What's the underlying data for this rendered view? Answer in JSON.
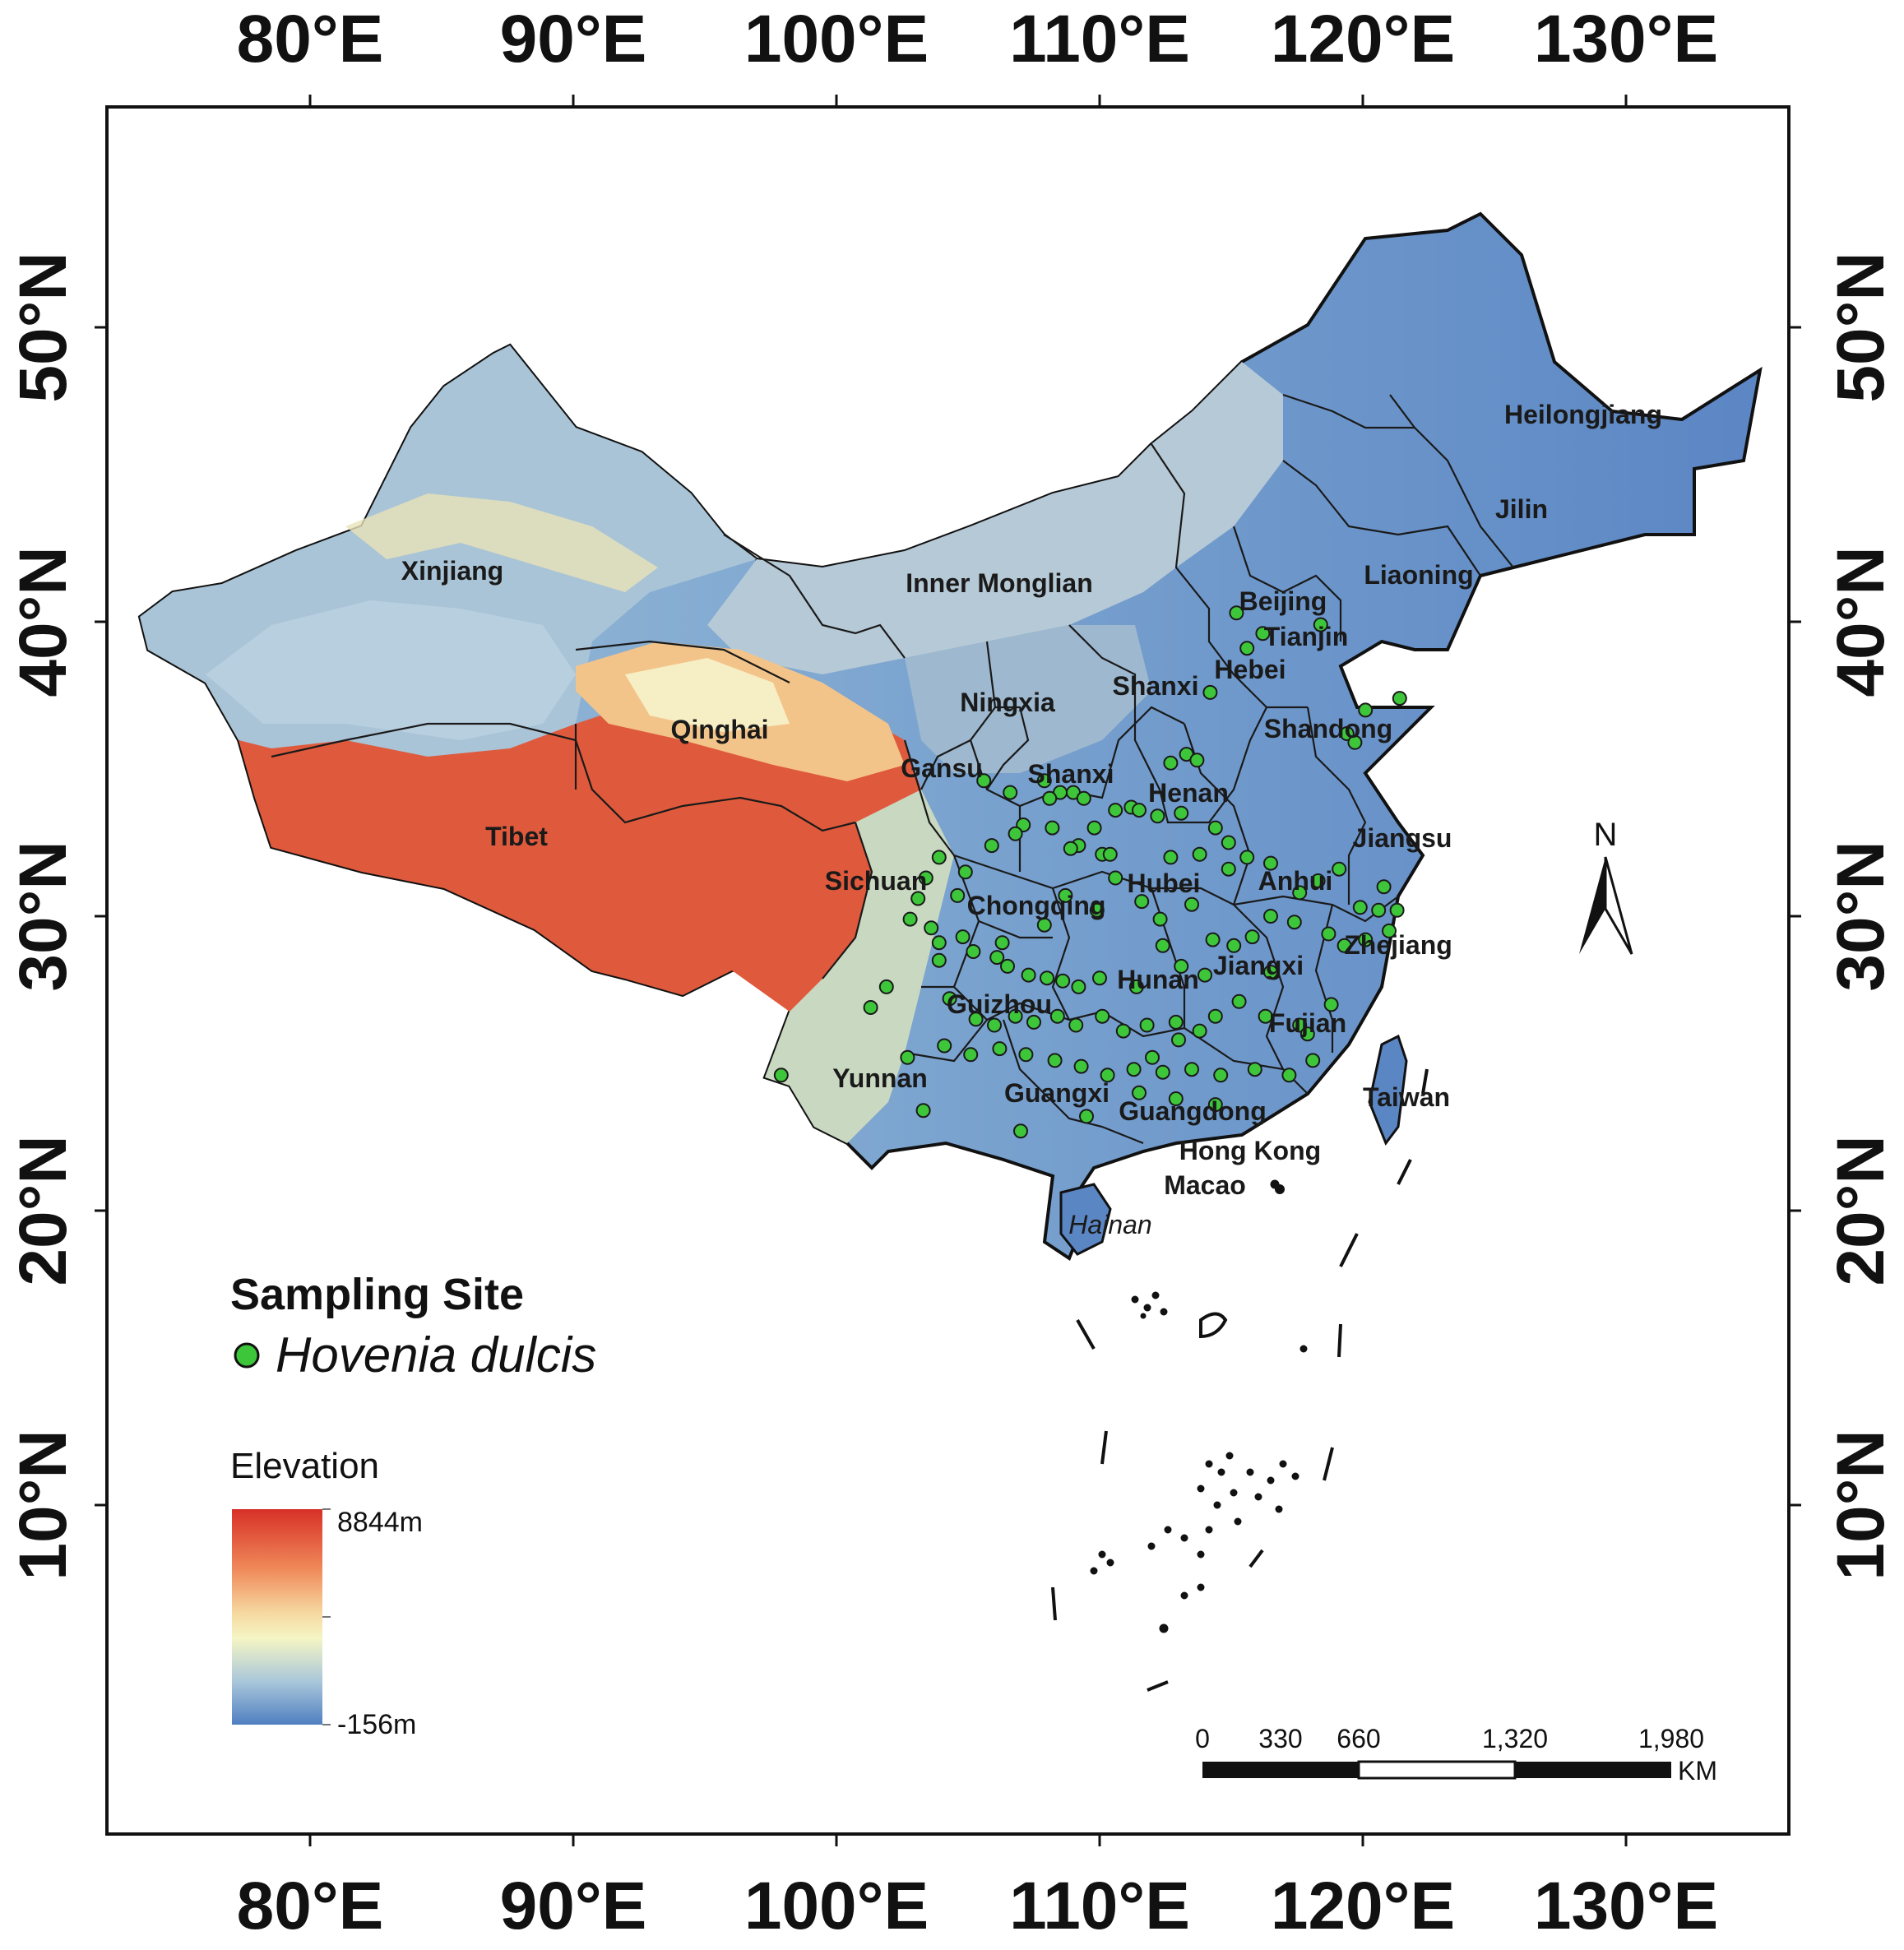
{
  "axes": {
    "top_lon_labels": [
      "80°E",
      "90°E",
      "100°E",
      "110°E",
      "120°E",
      "130°E"
    ],
    "bottom_lon_labels": [
      "80°E",
      "90°E",
      "100°E",
      "110°E",
      "120°E",
      "130°E"
    ],
    "left_lat_labels": [
      "50°N",
      "40°N",
      "30°N",
      "20°N",
      "10°N"
    ],
    "right_lat_labels": [
      "50°N",
      "40°N",
      "30°N",
      "20°N",
      "10°N"
    ]
  },
  "provinces": [
    {
      "name": "Xinjiang",
      "style": "bold"
    },
    {
      "name": "Inner Monglian",
      "style": "bold"
    },
    {
      "name": "Heilongjiang",
      "style": "bold"
    },
    {
      "name": "Jilin",
      "style": "bold"
    },
    {
      "name": "Liaoning",
      "style": "bold"
    },
    {
      "name": "Beijing",
      "style": "bold"
    },
    {
      "name": "Tianjin",
      "style": "bold"
    },
    {
      "name": "Hebei",
      "style": "bold"
    },
    {
      "name": "Shanxi",
      "style": "bold"
    },
    {
      "name": "Ningxia",
      "style": "bold"
    },
    {
      "name": "Qinghai",
      "style": "bold"
    },
    {
      "name": "Gansu",
      "style": "bold"
    },
    {
      "name": "Shanxi",
      "style": "bold"
    },
    {
      "name": "Shandong",
      "style": "bold"
    },
    {
      "name": "Henan",
      "style": "bold"
    },
    {
      "name": "Jiangsu",
      "style": "bold"
    },
    {
      "name": "Tibet",
      "style": "bold"
    },
    {
      "name": "Sichuan",
      "style": "bold"
    },
    {
      "name": "Chongqing",
      "style": "bold"
    },
    {
      "name": "Hubei",
      "style": "bold"
    },
    {
      "name": "Anhui",
      "style": "bold"
    },
    {
      "name": "Zhejiang",
      "style": "bold"
    },
    {
      "name": "Hunan",
      "style": "bold"
    },
    {
      "name": "Jiangxi",
      "style": "bold"
    },
    {
      "name": "Guizhou",
      "style": "bold"
    },
    {
      "name": "Fujian",
      "style": "bold"
    },
    {
      "name": "Yunnan",
      "style": "bold"
    },
    {
      "name": "Guangxi",
      "style": "bold"
    },
    {
      "name": "Guangdong",
      "style": "bold"
    },
    {
      "name": "Taiwan",
      "style": "bold"
    },
    {
      "name": "Hong Kong",
      "style": "bold"
    },
    {
      "name": "Macao",
      "style": "bold"
    },
    {
      "name": "Hainan",
      "style": "italic"
    }
  ],
  "legend": {
    "title": "Sampling Site",
    "species": "Hovenia dulcis",
    "marker_color": "#3ec63a",
    "elevation_title": "Elevation",
    "elevation_max": "8844m",
    "elevation_min": "-156m",
    "elevation_colors": [
      "#d73027",
      "#f08a5a",
      "#f6d8a0",
      "#f5f5c4",
      "#a9c7da",
      "#4f7fc1"
    ]
  },
  "scale_bar": {
    "ticks": [
      "0",
      "330",
      "660",
      "1,320",
      "1,980"
    ],
    "unit": "KM"
  },
  "north_arrow": {
    "label": "N"
  },
  "sampling_sites": [
    [
      118.4,
      39.9
    ],
    [
      116.2,
      39.6
    ],
    [
      115.2,
      40.3
    ],
    [
      115.6,
      39.1
    ],
    [
      114.2,
      37.6
    ],
    [
      121.4,
      37.4
    ],
    [
      120.1,
      37.0
    ],
    [
      119.4,
      36.2
    ],
    [
      119.7,
      35.9
    ],
    [
      113.3,
      35.5
    ],
    [
      112.7,
      35.2
    ],
    [
      113.7,
      35.3
    ],
    [
      105.6,
      34.6
    ],
    [
      106.6,
      34.2
    ],
    [
      107.9,
      34.6
    ],
    [
      108.5,
      34.2
    ],
    [
      108.1,
      34.0
    ],
    [
      109.0,
      34.2
    ],
    [
      109.4,
      34.0
    ],
    [
      110.6,
      33.6
    ],
    [
      111.2,
      33.7
    ],
    [
      111.5,
      33.6
    ],
    [
      112.2,
      33.4
    ],
    [
      113.1,
      33.5
    ],
    [
      107.1,
      33.1
    ],
    [
      108.2,
      33.0
    ],
    [
      109.8,
      33.0
    ],
    [
      109.2,
      32.4
    ],
    [
      108.9,
      32.3
    ],
    [
      110.1,
      32.1
    ],
    [
      106.8,
      32.8
    ],
    [
      105.9,
      32.4
    ],
    [
      103.9,
      32.0
    ],
    [
      103.4,
      31.3
    ],
    [
      103.1,
      30.6
    ],
    [
      102.8,
      29.9
    ],
    [
      103.6,
      29.6
    ],
    [
      103.9,
      29.1
    ],
    [
      104.8,
      29.3
    ],
    [
      105.2,
      28.8
    ],
    [
      106.1,
      28.6
    ],
    [
      106.5,
      28.3
    ],
    [
      107.3,
      28.0
    ],
    [
      108.0,
      27.9
    ],
    [
      108.6,
      27.8
    ],
    [
      109.2,
      27.6
    ],
    [
      110.0,
      27.9
    ],
    [
      111.4,
      27.6
    ],
    [
      104.3,
      27.2
    ],
    [
      105.3,
      26.5
    ],
    [
      106.0,
      26.3
    ],
    [
      106.8,
      26.6
    ],
    [
      107.5,
      26.4
    ],
    [
      108.4,
      26.6
    ],
    [
      109.1,
      26.3
    ],
    [
      110.1,
      26.6
    ],
    [
      110.9,
      26.1
    ],
    [
      111.8,
      26.3
    ],
    [
      112.9,
      26.4
    ],
    [
      113.8,
      26.1
    ],
    [
      104.1,
      25.6
    ],
    [
      105.1,
      25.3
    ],
    [
      106.2,
      25.5
    ],
    [
      107.2,
      25.3
    ],
    [
      108.3,
      25.1
    ],
    [
      109.3,
      24.9
    ],
    [
      110.3,
      24.6
    ],
    [
      111.3,
      24.8
    ],
    [
      112.4,
      24.7
    ],
    [
      113.5,
      24.8
    ],
    [
      114.6,
      24.6
    ],
    [
      115.9,
      24.8
    ],
    [
      97.9,
      24.6
    ],
    [
      102.7,
      25.2
    ],
    [
      103.3,
      23.4
    ],
    [
      107.0,
      22.7
    ],
    [
      109.5,
      23.2
    ],
    [
      111.5,
      24.0
    ],
    [
      112.9,
      23.8
    ],
    [
      114.4,
      23.6
    ],
    [
      117.2,
      24.6
    ],
    [
      118.1,
      25.1
    ],
    [
      117.6,
      26.3
    ],
    [
      118.8,
      27.0
    ],
    [
      114.3,
      29.2
    ],
    [
      115.1,
      29.0
    ],
    [
      115.8,
      29.3
    ],
    [
      114.0,
      28.0
    ],
    [
      113.1,
      28.3
    ],
    [
      112.4,
      29.0
    ],
    [
      116.5,
      30.0
    ],
    [
      117.6,
      30.8
    ],
    [
      118.3,
      31.2
    ],
    [
      119.1,
      31.6
    ],
    [
      119.9,
      30.3
    ],
    [
      120.6,
      30.2
    ],
    [
      121.0,
      29.5
    ],
    [
      120.1,
      29.2
    ],
    [
      119.3,
      29.0
    ],
    [
      115.6,
      32.0
    ],
    [
      116.5,
      31.8
    ],
    [
      114.9,
      31.6
    ],
    [
      113.8,
      32.1
    ],
    [
      112.7,
      32.0
    ],
    [
      114.9,
      32.5
    ],
    [
      114.4,
      33.0
    ],
    [
      110.4,
      32.1
    ],
    [
      110.6,
      31.3
    ],
    [
      111.6,
      30.5
    ],
    [
      112.3,
      29.9
    ],
    [
      113.5,
      30.4
    ],
    [
      117.4,
      29.8
    ],
    [
      118.7,
      29.4
    ],
    [
      116.5,
      28.1
    ],
    [
      115.3,
      27.1
    ],
    [
      116.3,
      26.6
    ],
    [
      117.9,
      26.0
    ],
    [
      114.4,
      26.6
    ],
    [
      113.0,
      25.8
    ],
    [
      112.0,
      25.2
    ],
    [
      101.9,
      27.6
    ],
    [
      101.3,
      26.9
    ],
    [
      103.9,
      28.5
    ],
    [
      106.3,
      29.1
    ],
    [
      107.9,
      29.7
    ],
    [
      109.9,
      30.2
    ],
    [
      108.7,
      30.7
    ],
    [
      104.6,
      30.7
    ],
    [
      104.9,
      31.5
    ],
    [
      121.3,
      30.2
    ],
    [
      120.8,
      31.0
    ]
  ]
}
